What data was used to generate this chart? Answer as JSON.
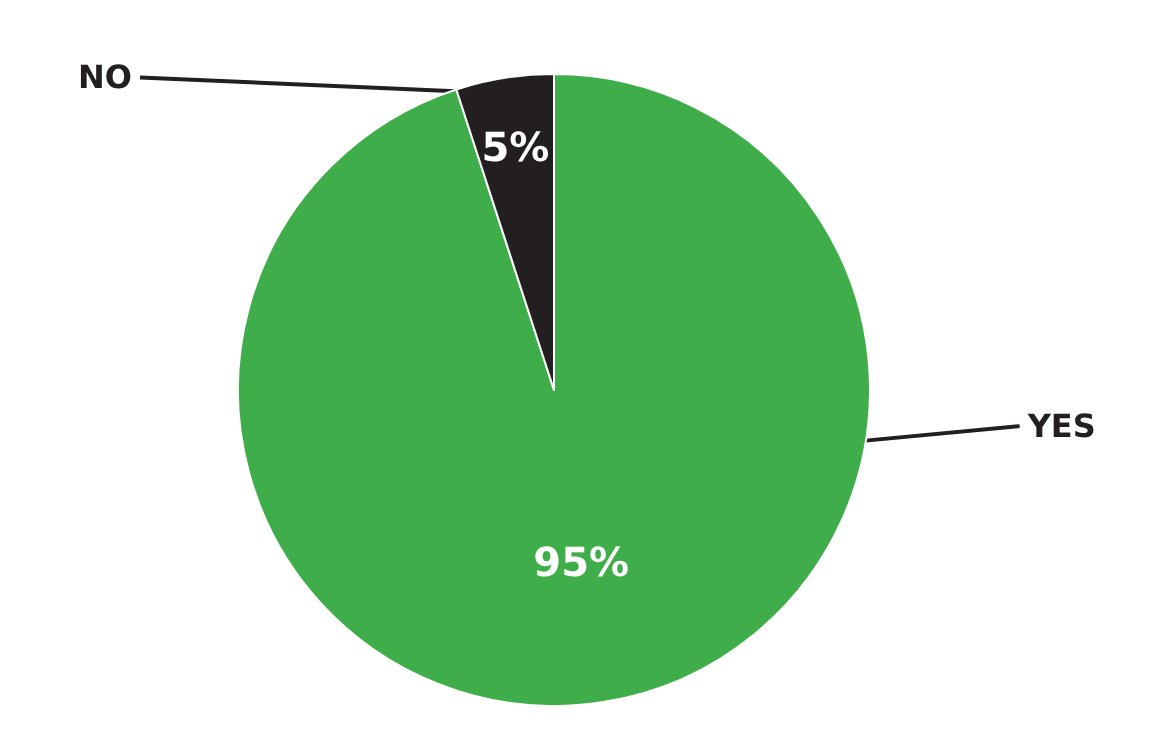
{
  "chart_data": {
    "type": "pie",
    "categories": [
      "YES",
      "NO"
    ],
    "values": [
      95,
      5
    ],
    "value_labels": [
      "95%",
      "5%"
    ],
    "colors": [
      "#3fae4a",
      "#231f20"
    ],
    "legend": false
  }
}
